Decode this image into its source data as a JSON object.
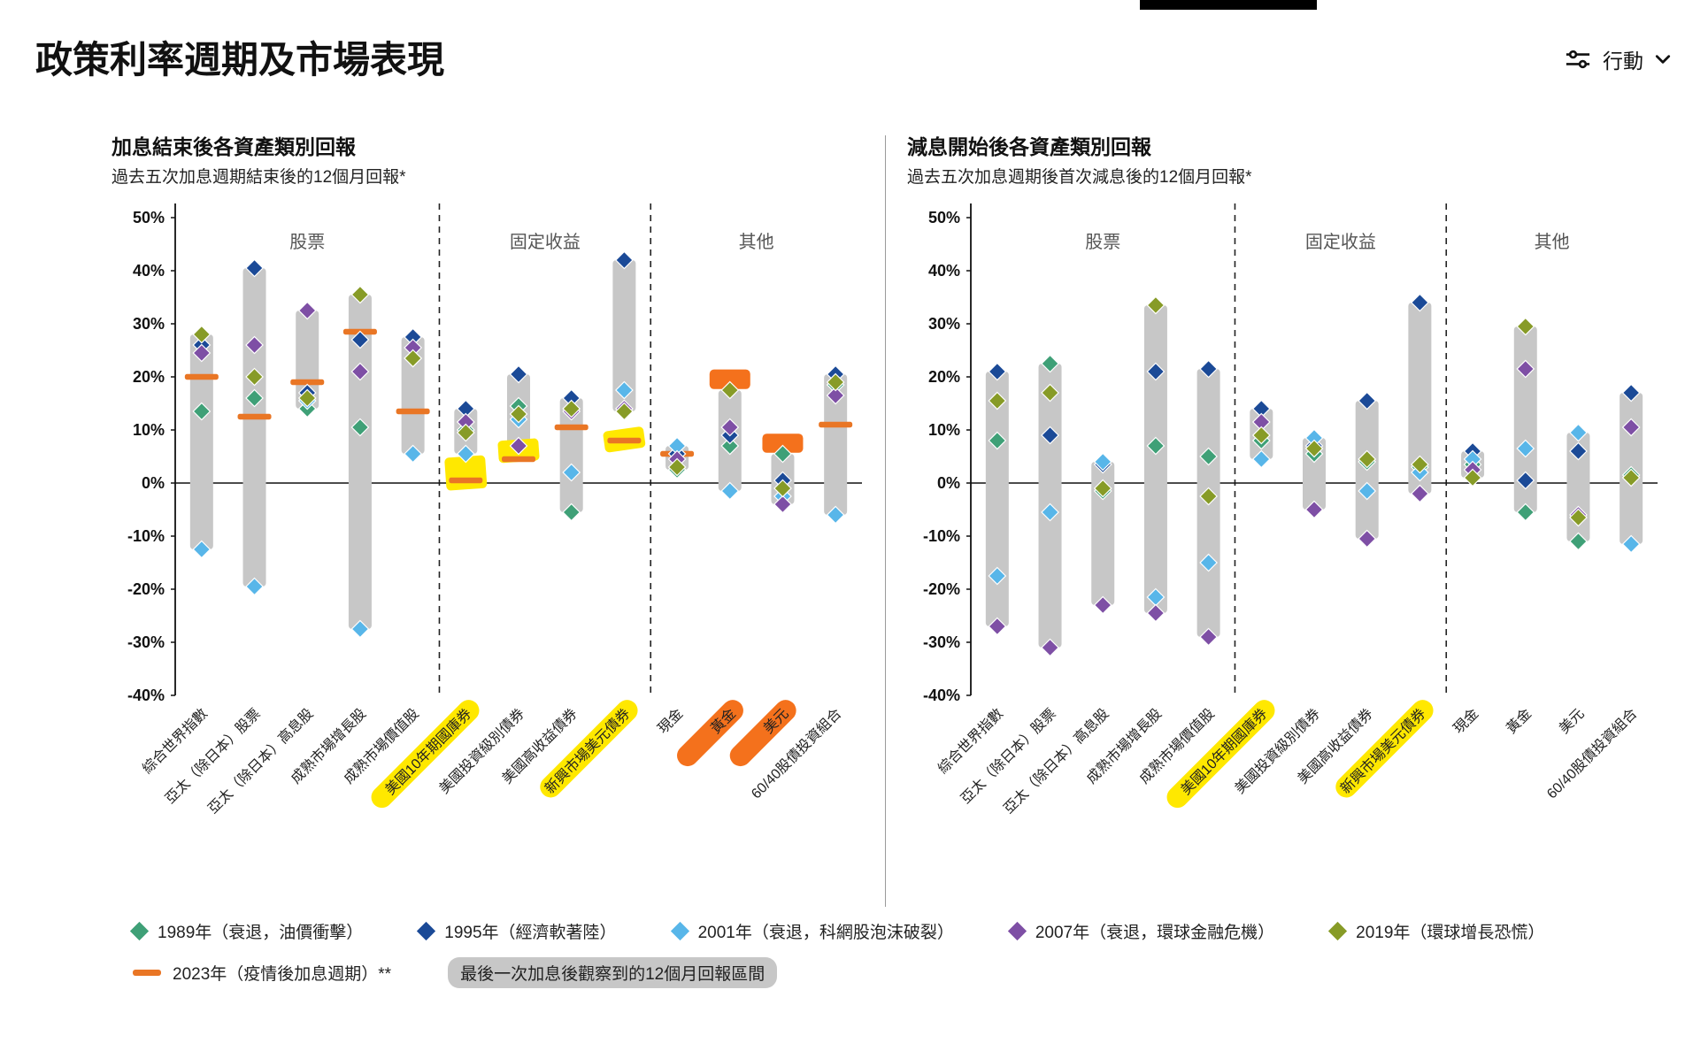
{
  "page": {
    "title": "政策利率週期及市場表現",
    "action_label": "行動"
  },
  "colors": {
    "1989": "#3fa077",
    "1995": "#1b4a97",
    "2001": "#58b6e9",
    "2007": "#7e4fa5",
    "2019": "#879b27",
    "2023": "#e97625",
    "range_bar": "#c7c7c7",
    "highlight_yellow": "#ffe800",
    "highlight_orange": "#f4711c",
    "axis": "#111111"
  },
  "legend": {
    "years": [
      {
        "year": "1989",
        "label": "1989年（衰退，油價衝擊）"
      },
      {
        "year": "1995",
        "label": "1995年（經濟軟著陸）"
      },
      {
        "year": "2001",
        "label": "2001年（衰退，科網股泡沫破裂）"
      },
      {
        "year": "2007",
        "label": "2007年（衰退，環球金融危機）"
      },
      {
        "year": "2019",
        "label": "2019年（環球增長恐慌）"
      }
    ],
    "extra": [
      {
        "year": "2023",
        "label": "2023年（疫情後加息週期）**",
        "swatch": "dash"
      },
      {
        "label": "最後一次加息後觀察到的12個月回報區間",
        "swatch": "bar"
      }
    ]
  },
  "chart_data": [
    {
      "type": "range-dot",
      "title": "加息結束後各資產類別回報",
      "subtitle": "過去五次加息週期結束後的12個月回報*",
      "ylim": [
        -40,
        50
      ],
      "ytick_step": 10,
      "series_years": [
        "1989",
        "1995",
        "2001",
        "2007",
        "2019"
      ],
      "sections": [
        {
          "label": "股票",
          "span": 5
        },
        {
          "label": "固定收益",
          "span": 4
        },
        {
          "label": "其他",
          "span": 4
        }
      ],
      "categories": [
        {
          "label": "綜合世界指數",
          "range": [
            -12.5,
            28
          ],
          "values": {
            "1989": 13.5,
            "1995": 26,
            "2001": -12.5,
            "2007": 24.5,
            "2019": 28
          },
          "v2023": 20
        },
        {
          "label": "亞太（除日本）股票",
          "range": [
            -19.5,
            40.5
          ],
          "values": {
            "1989": 16,
            "1995": 40.5,
            "2001": -19.5,
            "2007": 26,
            "2019": 20
          },
          "v2023": 12.5
        },
        {
          "label": "亞太（除日本）高息股",
          "range": [
            14,
            32.5
          ],
          "values": {
            "1989": 14,
            "1995": 17,
            "2001": 15.5,
            "2007": 32.5,
            "2019": 16
          },
          "v2023": 19
        },
        {
          "label": "成熟市場增長股",
          "range": [
            -27.5,
            35.5
          ],
          "values": {
            "1989": 10.5,
            "1995": 27,
            "2001": -27.5,
            "2007": 21,
            "2019": 35.5
          },
          "v2023": 28.5
        },
        {
          "label": "成熟市場價值股",
          "range": [
            5.5,
            27.5
          ],
          "values": {
            "1989": 23.5,
            "1995": 27.5,
            "2001": 5.5,
            "2007": 25.5,
            "2019": 23.5
          },
          "v2023": 13.5
        },
        {
          "label": "美國10年期國庫券",
          "range": [
            5.5,
            14
          ],
          "values": {
            "1989": 10,
            "1995": 14,
            "2001": 5.5,
            "2007": 11.5,
            "2019": 9.5
          },
          "v2023": 0.5,
          "label_highlight": "yellow",
          "highlight_box": {
            "color": "yellow",
            "from": -1.2,
            "to": 5,
            "tilt": -4
          }
        },
        {
          "label": "美國投資級別債券",
          "range": [
            7,
            20.5
          ],
          "values": {
            "1989": 14.5,
            "1995": 20.5,
            "2001": 12,
            "2007": 7,
            "2019": 13
          },
          "v2023": 4.5,
          "highlight_box": {
            "color": "yellow",
            "from": 4,
            "to": 8.2,
            "tilt": -4
          }
        },
        {
          "label": "美國高收益債券",
          "range": [
            -5.5,
            16
          ],
          "values": {
            "1989": -5.5,
            "1995": 16,
            "2001": 2,
            "2007": 13.5,
            "2019": 14
          },
          "v2023": 10.5
        },
        {
          "label": "新興市場美元債券",
          "range": [
            13.5,
            42
          ],
          "values": {
            "1989": 13.5,
            "1995": 42,
            "2001": 17.5,
            "2007": 14,
            "2019": 13.5
          },
          "v2023": 8,
          "label_highlight": "yellow",
          "highlight_box": {
            "color": "yellow",
            "from": 6.2,
            "to": 10.2,
            "tilt": -8
          }
        },
        {
          "label": "現金",
          "range": [
            2.5,
            7
          ],
          "values": {
            "1989": 2.5,
            "1995": 5.5,
            "2001": 7,
            "2007": 4.5,
            "2019": 3
          },
          "v2023": 5.5
        },
        {
          "label": "黃金",
          "range": [
            -1.5,
            17.5
          ],
          "values": {
            "1989": 7,
            "1995": 9,
            "2001": -1.5,
            "2007": 10.5,
            "2019": 17.5
          },
          "v2023": 19.5,
          "label_highlight": "orange",
          "highlight_box": {
            "color": "orange",
            "from": 17.7,
            "to": 21.4
          }
        },
        {
          "label": "美元",
          "range": [
            -4,
            5.5
          ],
          "values": {
            "1989": 5.5,
            "1995": 0.5,
            "2001": -2.5,
            "2007": -4,
            "2019": -1
          },
          "v2023": 7.5,
          "label_highlight": "orange",
          "highlight_box": {
            "color": "orange",
            "from": 5.7,
            "to": 9.3
          }
        },
        {
          "label": "60/40股債投資組合",
          "range": [
            -6,
            20.5
          ],
          "values": {
            "1989": 18.5,
            "1995": 20.5,
            "2001": -6,
            "2007": 16.5,
            "2019": 19
          },
          "v2023": 11
        }
      ]
    },
    {
      "type": "range-dot",
      "title": "減息開始後各資產類別回報",
      "subtitle": "過去五次加息週期後首次減息後的12個月回報*",
      "ylim": [
        -40,
        50
      ],
      "ytick_step": 10,
      "series_years": [
        "1989",
        "1995",
        "2001",
        "2007",
        "2019"
      ],
      "sections": [
        {
          "label": "股票",
          "span": 5
        },
        {
          "label": "固定收益",
          "span": 4
        },
        {
          "label": "其他",
          "span": 4
        }
      ],
      "categories": [
        {
          "label": "綜合世界指數",
          "range": [
            -27,
            21
          ],
          "values": {
            "1989": 8,
            "1995": 21,
            "2001": -17.5,
            "2007": -27,
            "2019": 15.5
          }
        },
        {
          "label": "亞太（除日本）股票",
          "range": [
            -31,
            22.5
          ],
          "values": {
            "1989": 22.5,
            "1995": 9,
            "2001": -5.5,
            "2007": -31,
            "2019": 17
          }
        },
        {
          "label": "亞太（除日本）高息股",
          "range": [
            -23,
            4
          ],
          "values": {
            "1989": -1.5,
            "1995": 3.5,
            "2001": 4,
            "2007": -23,
            "2019": -1
          }
        },
        {
          "label": "成熟市場增長股",
          "range": [
            -24.5,
            33.5
          ],
          "values": {
            "1989": 7,
            "1995": 21,
            "2001": -21.5,
            "2007": -24.5,
            "2019": 33.5
          }
        },
        {
          "label": "成熟市場價值股",
          "range": [
            -29,
            21.5
          ],
          "values": {
            "1989": 5,
            "1995": 21.5,
            "2001": -15,
            "2007": -29,
            "2019": -2.5
          }
        },
        {
          "label": "美國10年期國庫券",
          "range": [
            4.5,
            14
          ],
          "values": {
            "1989": 8,
            "1995": 14,
            "2001": 4.5,
            "2007": 11.5,
            "2019": 9
          },
          "label_highlight": "yellow"
        },
        {
          "label": "美國投資級別債券",
          "range": [
            -5,
            8.5
          ],
          "values": {
            "1989": 5.5,
            "1995": 7,
            "2001": 8.5,
            "2007": -5,
            "2019": 6.5
          }
        },
        {
          "label": "美國高收益債券",
          "range": [
            -10.5,
            15.5
          ],
          "values": {
            "1989": 4,
            "1995": 15.5,
            "2001": -1.5,
            "2007": -10.5,
            "2019": 4.5
          }
        },
        {
          "label": "新興市場美元債券",
          "range": [
            -2,
            34
          ],
          "values": {
            "1989": 3,
            "1995": 34,
            "2001": 2,
            "2007": -2,
            "2019": 3.5
          },
          "label_highlight": "yellow"
        },
        {
          "label": "現金",
          "range": [
            1,
            6
          ],
          "values": {
            "1989": 3.5,
            "1995": 6,
            "2001": 4.5,
            "2007": 2.5,
            "2019": 1
          }
        },
        {
          "label": "黃金",
          "range": [
            -5.5,
            29.5
          ],
          "values": {
            "1989": -5.5,
            "1995": 0.5,
            "2001": 6.5,
            "2007": 21.5,
            "2019": 29.5
          }
        },
        {
          "label": "美元",
          "range": [
            -11,
            9.5
          ],
          "values": {
            "1989": -11,
            "1995": 6,
            "2001": 9.5,
            "2007": -6,
            "2019": -6.5
          }
        },
        {
          "label": "60/40股債投資組合",
          "range": [
            -11.5,
            17
          ],
          "values": {
            "1989": 1.5,
            "1995": 17,
            "2001": -11.5,
            "2007": 10.5,
            "2019": 1
          }
        }
      ]
    }
  ]
}
